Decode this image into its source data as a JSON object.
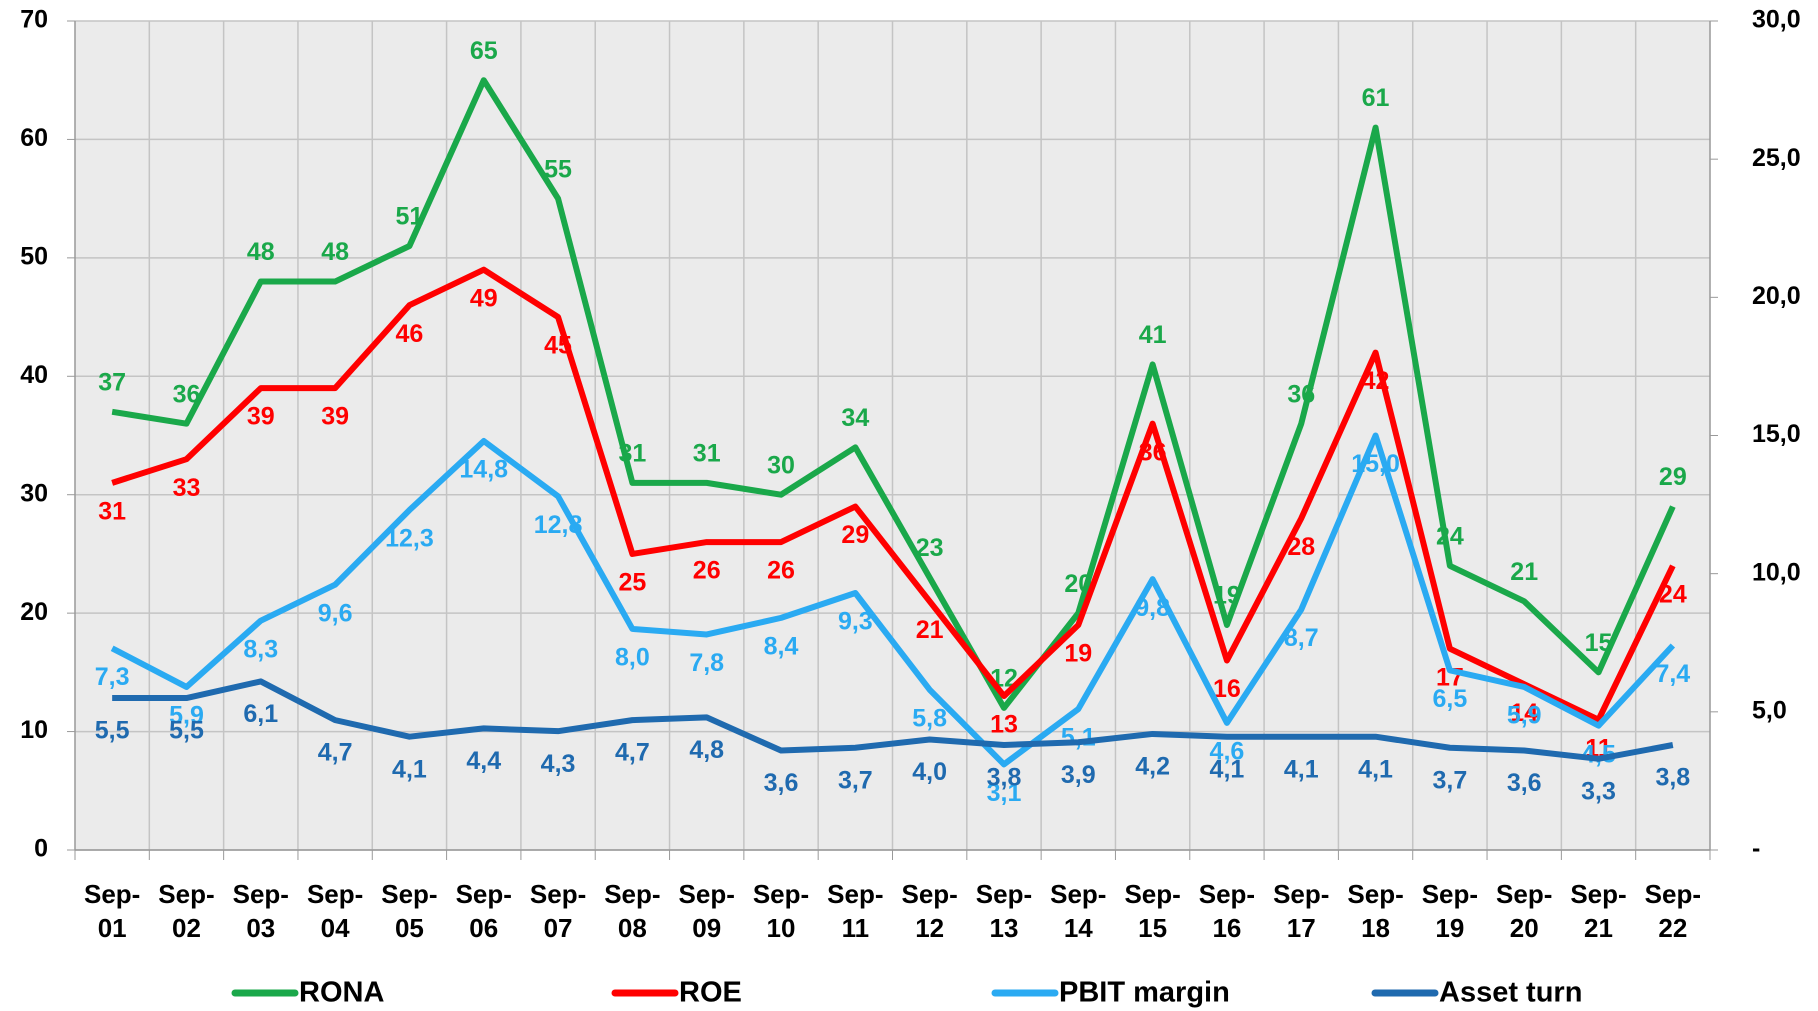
{
  "chart_data": {
    "type": "line",
    "categories": [
      "Sep-01",
      "Sep-02",
      "Sep-03",
      "Sep-04",
      "Sep-05",
      "Sep-06",
      "Sep-07",
      "Sep-08",
      "Sep-09",
      "Sep-10",
      "Sep-11",
      "Sep-12",
      "Sep-13",
      "Sep-14",
      "Sep-15",
      "Sep-16",
      "Sep-17",
      "Sep-18",
      "Sep-19",
      "Sep-20",
      "Sep-21",
      "Sep-22"
    ],
    "series": [
      {
        "name": "RONA",
        "color": "#1aa84a",
        "values": [
          37,
          36,
          48,
          48,
          51,
          65,
          55,
          31,
          31,
          30,
          34,
          23,
          12,
          20,
          41,
          19,
          36,
          61,
          24,
          21,
          15,
          29
        ]
      },
      {
        "name": "ROE",
        "color": "#ff0000",
        "values": [
          31,
          33,
          39,
          39,
          46,
          49,
          45,
          25,
          26,
          26,
          29,
          21,
          13,
          19,
          36,
          16,
          28,
          42,
          17,
          14,
          11,
          24
        ]
      },
      {
        "name": "PBIT margin",
        "color": "#2aaaf2",
        "axis": "y2",
        "values": [
          7.3,
          5.9,
          8.3,
          9.6,
          12.3,
          14.8,
          12.8,
          8.0,
          7.8,
          8.4,
          9.3,
          5.8,
          3.1,
          5.1,
          9.8,
          4.6,
          8.7,
          15.0,
          6.5,
          5.9,
          4.5,
          7.4
        ],
        "value_labels": [
          "7,3",
          "5,9",
          "8,3",
          "9,6",
          "12,3",
          "14,8",
          "12,8",
          "8,0",
          "7,8",
          "8,4",
          "9,3",
          "5,8",
          "3,1",
          "5,1",
          "9,8",
          "4,6",
          "8,7",
          "15,0",
          "6,5",
          "5,9",
          "4,5",
          "7,4"
        ]
      },
      {
        "name": "Asset turn",
        "color": "#1f6aaf",
        "axis": "y2",
        "values": [
          5.5,
          5.5,
          6.1,
          4.7,
          4.1,
          4.4,
          4.3,
          4.7,
          4.8,
          3.6,
          3.7,
          4.0,
          3.8,
          3.9,
          4.2,
          4.1,
          4.1,
          4.1,
          3.7,
          3.6,
          3.3,
          3.8
        ],
        "value_labels": [
          "5,5",
          "5,5",
          "6,1",
          "4,7",
          "4,1",
          "4,4",
          "4,3",
          "4,7",
          "4,8",
          "3,6",
          "3,7",
          "4,0",
          "3,8",
          "3,9",
          "4,2",
          "4,1",
          "4,1",
          "4,1",
          "3,7",
          "3,6",
          "3,3",
          "3,8"
        ]
      }
    ],
    "ylim": [
      0,
      70
    ],
    "yticks": [
      0,
      10,
      20,
      30,
      40,
      50,
      60,
      70
    ],
    "y2lim": [
      0,
      30
    ],
    "y2ticks": [
      {
        "value": 0,
        "label": "-"
      },
      {
        "value": 5,
        "label": "5,0"
      },
      {
        "value": 10,
        "label": "10,0"
      },
      {
        "value": 15,
        "label": "15,0"
      },
      {
        "value": 20,
        "label": "20,0"
      },
      {
        "value": 25,
        "label": "25,0"
      },
      {
        "value": 30,
        "label": "30,0"
      }
    ],
    "grid": true,
    "legend": "bottom"
  }
}
